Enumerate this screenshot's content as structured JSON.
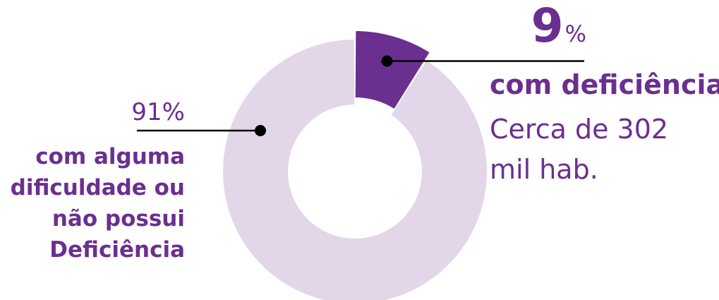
{
  "chart_data": {
    "type": "pie",
    "variant": "donut",
    "slices": [
      {
        "label": "com deficiência",
        "value": 9,
        "color": "#6b2f8f"
      },
      {
        "label": "com alguma dificuldade ou não possui Deficiência",
        "value": 91,
        "color": "#e2d6e8"
      }
    ]
  },
  "annotations": {
    "deficiency": {
      "pct_value": "9",
      "pct_symbol": "%",
      "title": "com deficiência",
      "detail": "Cerca de 302 mil hab."
    },
    "other": {
      "pct_text": "91%",
      "title": "com alguma dificuldade ou não possui Deficiência"
    }
  },
  "colors": {
    "accent": "#6b2f8f",
    "muted": "#e2d6e8",
    "leader": "#000000"
  }
}
